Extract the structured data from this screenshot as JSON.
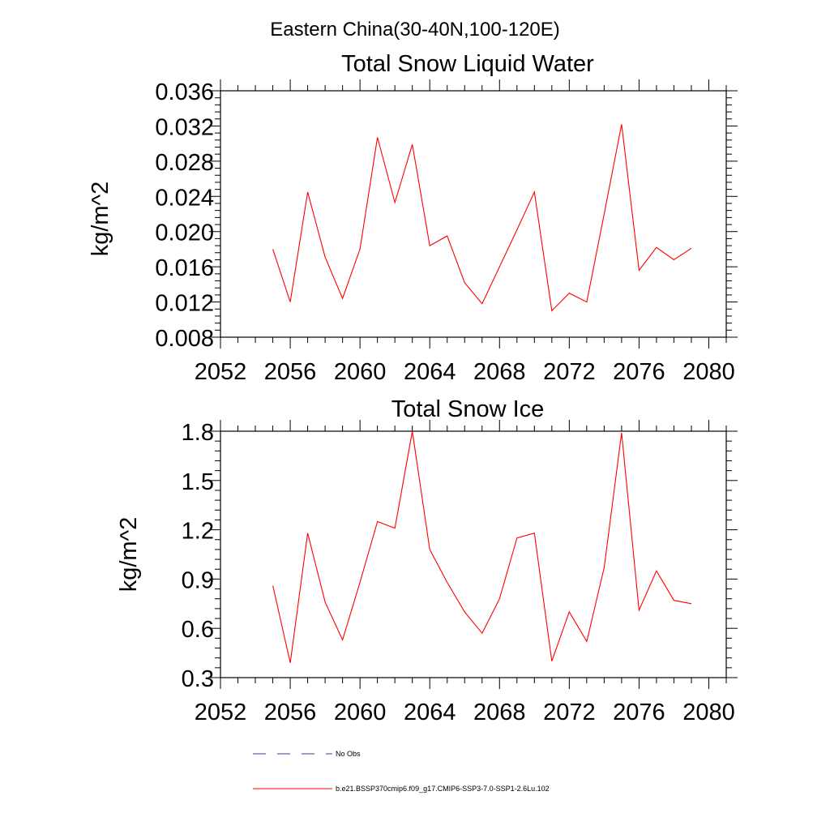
{
  "suptitle": "Eastern China(30-40N,100-120E)",
  "legend": {
    "entries": [
      {
        "label": "No Obs",
        "style": "dashed",
        "color": "#3b3b8f"
      },
      {
        "label": "b.e21.BSSP370cmip6.f09_g17.CMIP6-SSP3-7.0-SSP1-2.6Lu.102",
        "style": "solid",
        "color": "#ff0000"
      }
    ]
  },
  "chart_data": [
    {
      "type": "line",
      "title": "Total Snow Liquid Water",
      "xlabel": "",
      "ylabel": "kg/m^2",
      "xlim": [
        2052,
        2081
      ],
      "ylim": [
        0.008,
        0.036
      ],
      "xticks": [
        2052,
        2056,
        2060,
        2064,
        2068,
        2072,
        2076,
        2080
      ],
      "xtick_labels": [
        "2052",
        "2056",
        "2060",
        "2064",
        "2068",
        "2072",
        "2076",
        "2080"
      ],
      "yticks": [
        0.008,
        0.012,
        0.016,
        0.02,
        0.024,
        0.028,
        0.032,
        0.036
      ],
      "ytick_labels": [
        "0.008",
        "0.012",
        "0.016",
        "0.020",
        "0.024",
        "0.028",
        "0.032",
        "0.036"
      ],
      "x": [
        2055,
        2056,
        2057,
        2058,
        2059,
        2060,
        2061,
        2062,
        2063,
        2064,
        2065,
        2066,
        2067,
        2068,
        2069,
        2070,
        2071,
        2072,
        2073,
        2074,
        2075,
        2076,
        2077,
        2078,
        2079
      ],
      "series": [
        {
          "color": "#ff0000",
          "values": [
            0.018,
            0.012,
            0.0245,
            0.0171,
            0.0124,
            0.018,
            0.0307,
            0.0233,
            0.0299,
            0.0184,
            0.0195,
            0.0142,
            0.0118,
            0.016,
            0.0202,
            0.0245,
            0.011,
            0.013,
            0.012,
            0.022,
            0.0322,
            0.0156,
            0.0182,
            0.0168,
            0.0181
          ]
        }
      ]
    },
    {
      "type": "line",
      "title": "Total Snow Ice",
      "xlabel": "",
      "ylabel": "kg/m^2",
      "xlim": [
        2052,
        2081
      ],
      "ylim": [
        0.3,
        1.8
      ],
      "xticks": [
        2052,
        2056,
        2060,
        2064,
        2068,
        2072,
        2076,
        2080
      ],
      "xtick_labels": [
        "2052",
        "2056",
        "2060",
        "2064",
        "2068",
        "2072",
        "2076",
        "2080"
      ],
      "yticks": [
        0.3,
        0.6,
        0.9,
        1.2,
        1.5,
        1.8
      ],
      "ytick_labels": [
        "0.3",
        "0.6",
        "0.9",
        "1.2",
        "1.5",
        "1.8"
      ],
      "x": [
        2055,
        2056,
        2057,
        2058,
        2059,
        2060,
        2061,
        2062,
        2063,
        2064,
        2065,
        2066,
        2067,
        2068,
        2069,
        2070,
        2071,
        2072,
        2073,
        2074,
        2075,
        2076,
        2077,
        2078,
        2079
      ],
      "series": [
        {
          "color": "#ff0000",
          "values": [
            0.86,
            0.39,
            1.18,
            0.76,
            0.53,
            0.88,
            1.25,
            1.21,
            1.8,
            1.08,
            0.88,
            0.7,
            0.57,
            0.78,
            1.15,
            1.18,
            0.4,
            0.7,
            0.52,
            0.97,
            1.79,
            0.71,
            0.95,
            0.77,
            0.75
          ]
        }
      ]
    }
  ]
}
